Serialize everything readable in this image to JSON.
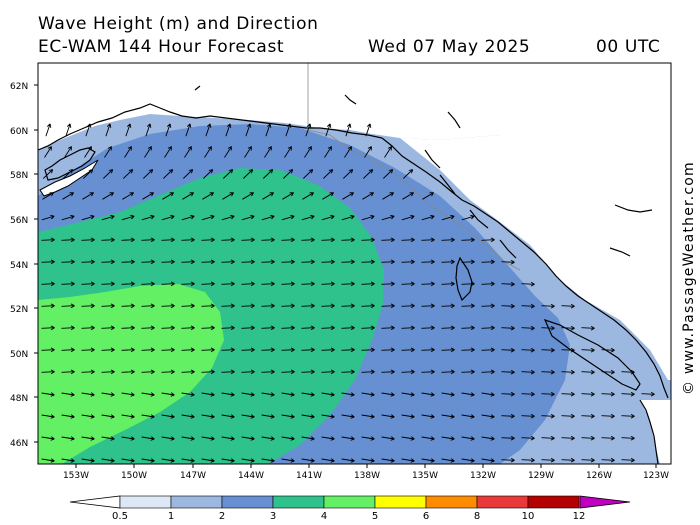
{
  "header": {
    "title": "Wave Height (m) and Direction",
    "model": "EC-WAM 144 Hour Forecast",
    "date": "Wed 07 May 2025",
    "time": "00 UTC"
  },
  "axes": {
    "lat_labels": [
      "62N",
      "60N",
      "58N",
      "56N",
      "54N",
      "52N",
      "50N",
      "48N",
      "46N"
    ],
    "lon_labels": [
      "153W",
      "150W",
      "147W",
      "144W",
      "141W",
      "138W",
      "135W",
      "132W",
      "129W",
      "126W",
      "123W"
    ]
  },
  "legend": {
    "ticks": [
      "0.5",
      "1",
      "2",
      "3",
      "4",
      "5",
      "6",
      "8",
      "10",
      "12"
    ],
    "colors": [
      "#dde7f5",
      "#9db8e0",
      "#6690d2",
      "#2fc28c",
      "#64f064",
      "#ffff00",
      "#ff8c00",
      "#e83a3a",
      "#b40000",
      "#c000c0"
    ]
  },
  "credit": "© www.PassageWeather.com",
  "colors": {
    "land": "#ffffff",
    "coast": "#000000",
    "arrow": "#000000"
  }
}
